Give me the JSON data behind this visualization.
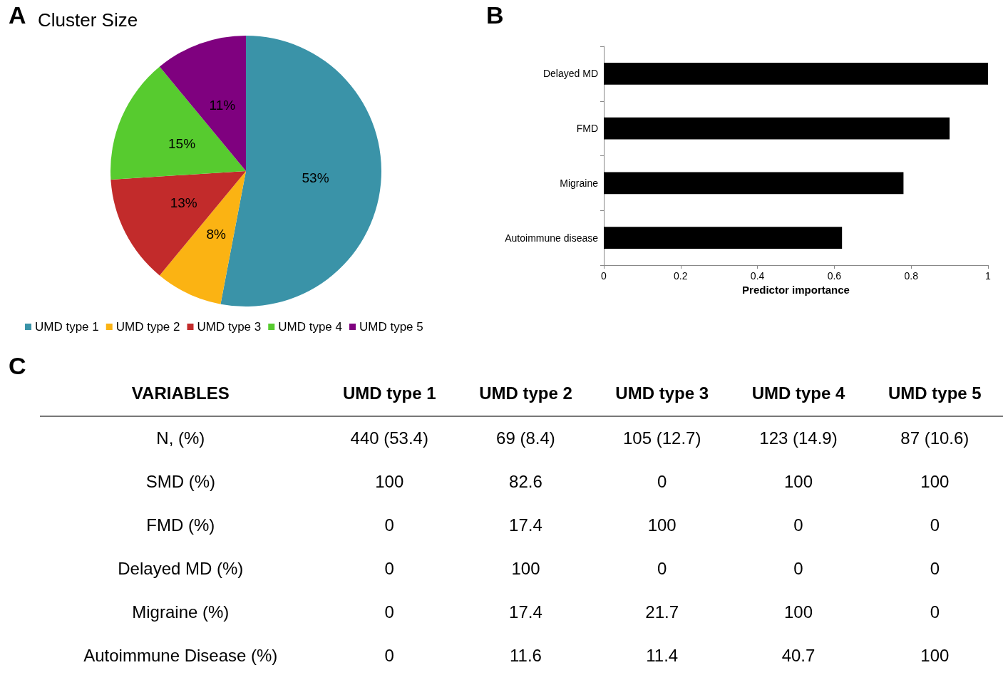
{
  "chart_data": [
    {
      "type": "pie",
      "title": "Cluster Size",
      "annotations": [
        "A"
      ],
      "categories": [
        "UMD type 1",
        "UMD type 2",
        "UMD type 3",
        "UMD type 4",
        "UMD type 5"
      ],
      "values": [
        53,
        8,
        13,
        15,
        11
      ],
      "value_labels": [
        "53%",
        "8%",
        "13%",
        "15%",
        "11%"
      ],
      "colors": [
        "#3a93a8",
        "#fbb313",
        "#c22b2b",
        "#57cb2f",
        "#7f017f"
      ],
      "legend": "bottom"
    },
    {
      "type": "bar",
      "orientation": "horizontal",
      "annotations": [
        "B"
      ],
      "xlabel": "Predictor importance",
      "categories": [
        "Delayed MD",
        "FMD",
        "Migraine",
        "Autoimmune disease"
      ],
      "values": [
        1.0,
        0.9,
        0.78,
        0.62
      ],
      "color": "#000000",
      "xlim": [
        0,
        1
      ],
      "xticks": [
        0,
        0.2,
        0.4,
        0.6,
        0.8,
        1
      ],
      "grid": false,
      "legend": false
    },
    {
      "type": "other",
      "annotations": [
        "C"
      ],
      "ylabel": "VARIABLES",
      "categories": [
        "UMD type 1",
        "UMD type 2",
        "UMD type 3",
        "UMD type 4",
        "UMD type 5"
      ],
      "y_categories": [
        "N, (%)",
        "SMD (%)",
        "FMD (%)",
        "Delayed MD (%)",
        "Migraine (%)",
        "Autoimmune Disease (%)"
      ],
      "cell_labels": [
        [
          "440 (53.4)",
          "69 (8.4)",
          "105 (12.7)",
          "123 (14.9)",
          "87 (10.6)"
        ],
        [
          "100",
          "82.6",
          "0",
          "100",
          "100"
        ],
        [
          "0",
          "17.4",
          "100",
          "0",
          "0"
        ],
        [
          "0",
          "100",
          "0",
          "0",
          "0"
        ],
        [
          "0",
          "17.4",
          "21.7",
          "100",
          "0"
        ],
        [
          "0",
          "11.6",
          "11.4",
          "40.7",
          "100"
        ]
      ]
    }
  ]
}
